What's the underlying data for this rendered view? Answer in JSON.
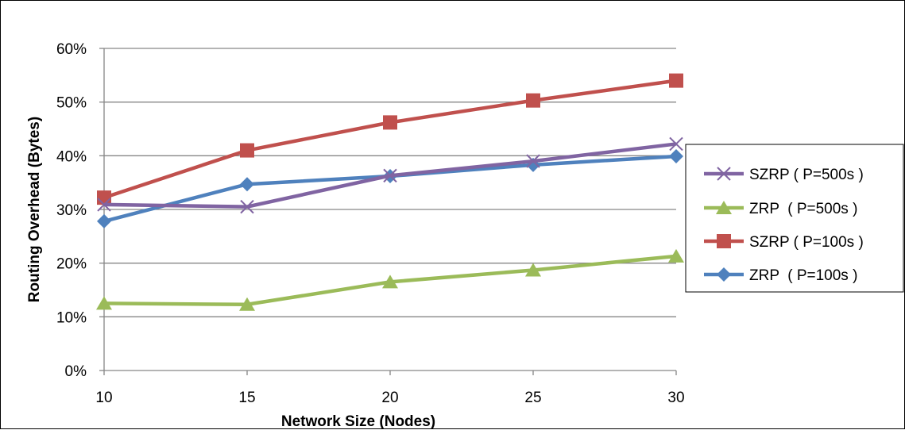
{
  "chart_data": {
    "type": "line",
    "title": "",
    "xlabel": "Network Size (Nodes)",
    "ylabel": "Routing Overhead (Bytes)",
    "categories": [
      "10",
      "15",
      "20",
      "25",
      "30"
    ],
    "x": [
      10,
      15,
      20,
      25,
      30
    ],
    "ylim": [
      0,
      60
    ],
    "yticks": [
      0,
      10,
      20,
      30,
      40,
      50,
      60
    ],
    "ytick_labels": [
      "0%",
      "10%",
      "20%",
      "30%",
      "40%",
      "50%",
      "60%"
    ],
    "grid": "horizontal",
    "legend_position": "right",
    "series": [
      {
        "name": "SZRP ( P=500s )",
        "values": [
          30.9,
          30.5,
          36.3,
          39.0,
          42.2
        ],
        "color": "#8064A2",
        "marker": "x"
      },
      {
        "name": "ZRP  ( P=500s )",
        "values": [
          12.5,
          12.3,
          16.5,
          18.7,
          21.3
        ],
        "color": "#9BBB59",
        "marker": "triangle"
      },
      {
        "name": "SZRP ( P=100s )",
        "values": [
          32.2,
          41.0,
          46.2,
          50.3,
          54.0
        ],
        "color": "#C0504D",
        "marker": "square"
      },
      {
        "name": "ZRP  ( P=100s )",
        "values": [
          27.8,
          34.7,
          36.2,
          38.3,
          39.9
        ],
        "color": "#4F81BD",
        "marker": "diamond"
      }
    ]
  }
}
